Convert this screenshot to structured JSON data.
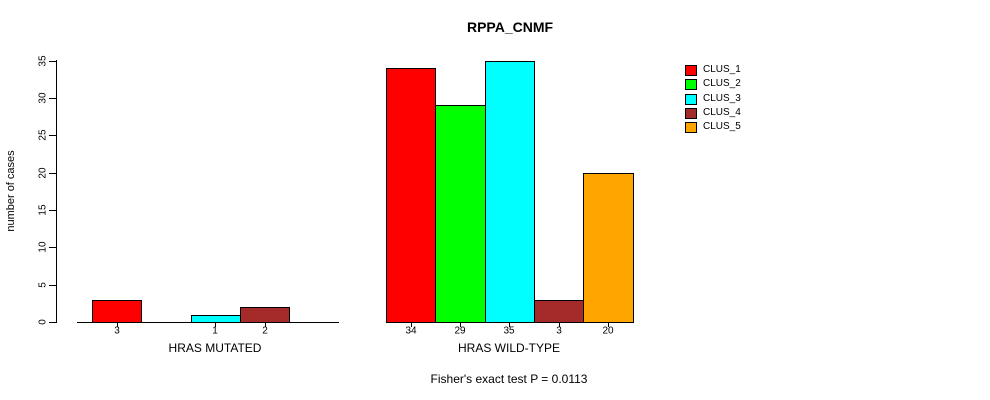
{
  "window": {
    "background": "#ffffff"
  },
  "chart_data": {
    "type": "bar",
    "title": "RPPA_CNMF",
    "xlabel": "",
    "ylabel": "number of cases",
    "ylim": [
      0,
      35
    ],
    "yticks": [
      0,
      5,
      10,
      15,
      20,
      25,
      30,
      35
    ],
    "grid": false,
    "legend_position": "right",
    "bar_outline_color": "#000000",
    "categories": [
      "HRAS MUTATED",
      "HRAS WILD-TYPE"
    ],
    "series": [
      {
        "name": "CLUS_1",
        "color": "#FF0000",
        "values": [
          3,
          34
        ]
      },
      {
        "name": "CLUS_2",
        "color": "#00FF00",
        "values": [
          0,
          29
        ]
      },
      {
        "name": "CLUS_3",
        "color": "#00FFFF",
        "values": [
          1,
          35
        ]
      },
      {
        "name": "CLUS_4",
        "color": "#A52A2A",
        "values": [
          2,
          3
        ]
      },
      {
        "name": "CLUS_5",
        "color": "#FFA500",
        "values": [
          0,
          20
        ]
      }
    ],
    "bar_value_labels": {
      "show": true,
      "hide_zero": true
    },
    "annotation": "Fisher's exact test P = 0.0113"
  }
}
